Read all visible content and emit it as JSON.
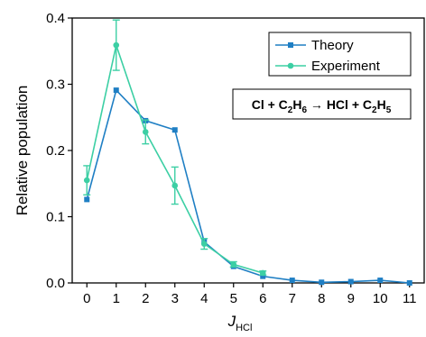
{
  "chart_data": {
    "type": "line",
    "x": [
      0,
      1,
      2,
      3,
      4,
      5,
      6,
      7,
      8,
      9,
      10,
      11
    ],
    "xlim": [
      -0.5,
      11.5
    ],
    "ylim": [
      0,
      0.4
    ],
    "xticks": [
      "0",
      "1",
      "2",
      "3",
      "4",
      "5",
      "6",
      "7",
      "8",
      "9",
      "10",
      "11"
    ],
    "yticks": [
      "0.0",
      "0.1",
      "0.2",
      "0.3",
      "0.4"
    ],
    "ytick_values": [
      0,
      0.1,
      0.2,
      0.3,
      0.4
    ],
    "ylabel": "Relative population",
    "xlabel_main": "J",
    "xlabel_sub": "HCl",
    "grid": false,
    "legend_position": "top-right",
    "series": [
      {
        "name": "Theory",
        "color": "#1f7fc4",
        "marker": "square",
        "values": [
          0.126,
          0.291,
          0.245,
          0.231,
          0.062,
          0.025,
          0.01,
          0.004,
          0.001,
          0.002,
          0.004,
          0.0
        ]
      },
      {
        "name": "Experiment",
        "color": "#3ccfa4",
        "marker": "circle",
        "values": [
          0.155,
          0.359,
          0.228,
          0.147,
          0.059,
          0.028,
          0.015,
          null,
          null,
          null,
          null,
          null
        ],
        "errors": [
          0.022,
          0.038,
          0.018,
          0.028,
          0.008,
          0.004,
          0.003,
          null,
          null,
          null,
          null,
          null
        ]
      }
    ],
    "annotation": {
      "parts": [
        {
          "text": "Cl + C",
          "sub": false
        },
        {
          "text": "2",
          "sub": true
        },
        {
          "text": "H",
          "sub": false
        },
        {
          "text": "6",
          "sub": true
        },
        {
          "text": " → HCl + C",
          "sub": false
        },
        {
          "text": "2",
          "sub": true
        },
        {
          "text": "H",
          "sub": false
        },
        {
          "text": "5",
          "sub": true
        }
      ]
    }
  }
}
